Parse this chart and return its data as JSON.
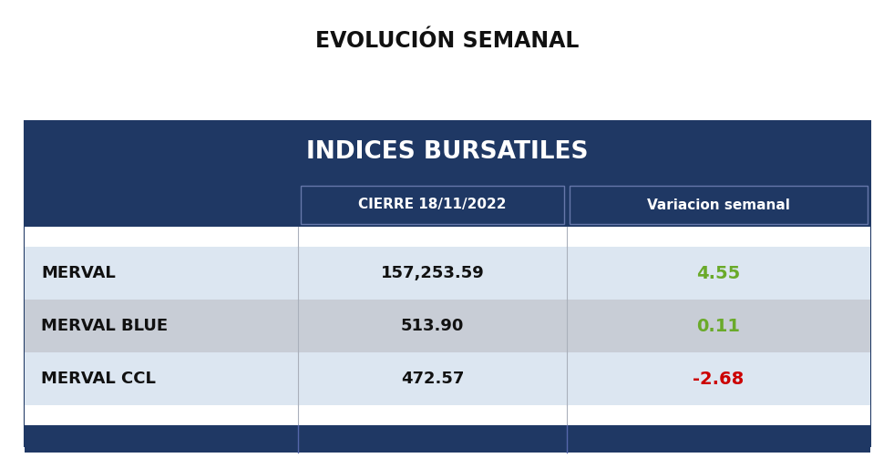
{
  "title": "EVOLUCIÓN SEMANAL",
  "table_title": "INDICES BURSATILES",
  "col_headers": [
    "",
    "CIERRE 18/11/2022",
    "Variacion semanal"
  ],
  "rows": [
    {
      "label": "MERVAL",
      "cierre": "157,253.59",
      "variacion": "4.55",
      "var_color": "#6aaa2a",
      "row_bg": "#dce6f1"
    },
    {
      "label": "MERVAL BLUE",
      "cierre": "513.90",
      "variacion": "0.11",
      "var_color": "#6aaa2a",
      "row_bg": "#c8cdd6"
    },
    {
      "label": "MERVAL CCL",
      "cierre": "472.57",
      "variacion": "-2.68",
      "var_color": "#cc0000",
      "row_bg": "#dce6f1"
    }
  ],
  "dark_blue": "#1f3864",
  "mid_blue": "#2e4d8a",
  "light_border": "#8899bb",
  "title_fontsize": 17,
  "table_title_fontsize": 19,
  "col_header_fontsize": 11,
  "row_label_fontsize": 13,
  "row_value_fontsize": 13,
  "var_fontsize": 14,
  "bg_color": "#ffffff",
  "figw": 9.81,
  "figh": 5.14,
  "dpi": 100
}
